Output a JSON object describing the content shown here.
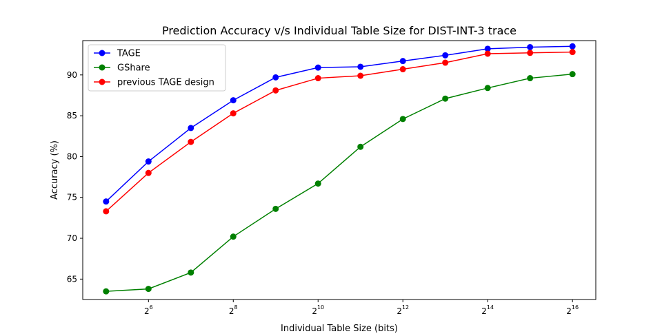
{
  "chart_data": {
    "type": "line",
    "title": "Prediction Accuracy v/s Individual Table Size for DIST-INT-3 trace",
    "xlabel": "Individual Table Size (bits)",
    "ylabel": "Accuracy (%)",
    "x_scale": "log2",
    "x": [
      5,
      6,
      7,
      8,
      9,
      10,
      11,
      12,
      13,
      14,
      15,
      16
    ],
    "x_tick_exponents": [
      6,
      8,
      10,
      12,
      14,
      16
    ],
    "x_tick_base": "2",
    "y_ticks": [
      65,
      70,
      75,
      80,
      85,
      90
    ],
    "ylim": [
      62.5,
      94.2
    ],
    "xlim": [
      4.45,
      16.55
    ],
    "grid": false,
    "legend_position": "upper-left",
    "series": [
      {
        "name": "TAGE",
        "color": "#0000ff",
        "values": [
          74.5,
          79.4,
          83.5,
          86.9,
          89.7,
          90.9,
          91.0,
          91.7,
          92.4,
          93.2,
          93.4,
          93.5
        ]
      },
      {
        "name": "GShare",
        "color": "#008000",
        "values": [
          63.5,
          63.8,
          65.8,
          70.2,
          73.6,
          76.7,
          81.2,
          84.6,
          87.1,
          88.4,
          89.6,
          90.1
        ]
      },
      {
        "name": "previous TAGE design",
        "color": "#ff0000",
        "values": [
          73.3,
          78.0,
          81.8,
          85.3,
          88.1,
          89.6,
          89.9,
          90.7,
          91.5,
          92.6,
          92.7,
          92.8
        ]
      }
    ]
  }
}
